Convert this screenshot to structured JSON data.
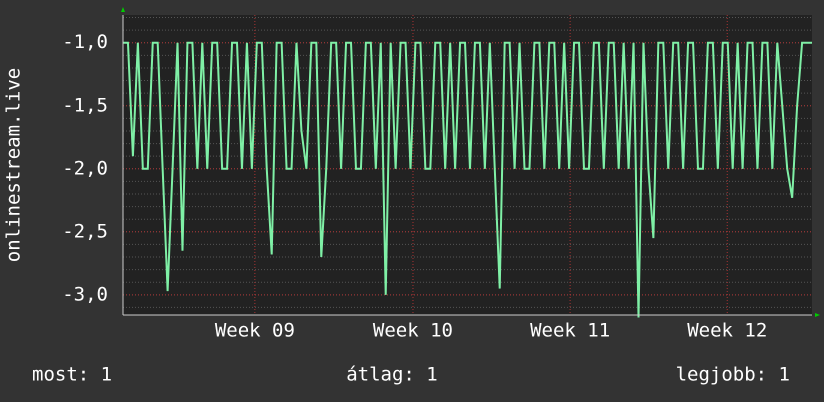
{
  "chart_data": {
    "type": "line",
    "y_label": "onlinestream.live",
    "series": [
      {
        "name": "onlinestream.live",
        "color": "#7ff0a6",
        "values": [
          -1,
          -1,
          -1.9,
          -1,
          -2,
          -2,
          -1,
          -1,
          -2,
          -2.97,
          -2,
          -1,
          -2.65,
          -1,
          -1,
          -2,
          -1,
          -2,
          -1,
          -1,
          -2,
          -2,
          -1,
          -1,
          -2,
          -1,
          -2,
          -1,
          -1,
          -2,
          -2.68,
          -1,
          -1,
          -2,
          -2,
          -1,
          -1.7,
          -2,
          -1,
          -1,
          -2.7,
          -2,
          -1,
          -1,
          -2,
          -1,
          -1,
          -2,
          -2,
          -1,
          -1,
          -2,
          -1,
          -3.0,
          -1,
          -2,
          -1,
          -1,
          -2,
          -1,
          -1,
          -2,
          -2,
          -1,
          -1,
          -2,
          -1,
          -2,
          -1,
          -1,
          -2,
          -1,
          -1,
          -2,
          -1,
          -2,
          -2.95,
          -1,
          -1,
          -2,
          -1,
          -2,
          -2,
          -1,
          -1,
          -2,
          -1,
          -1,
          -2,
          -1,
          -2,
          -1,
          -1,
          -2,
          -2,
          -1,
          -1,
          -2,
          -1,
          -1,
          -2,
          -1,
          -2,
          -1,
          -3.18,
          -1,
          -2,
          -2.55,
          -1,
          -1,
          -2,
          -1,
          -1,
          -2,
          -1,
          -1,
          -2,
          -2,
          -1,
          -1,
          -2,
          -1,
          -1,
          -2,
          -1,
          -2,
          -1,
          -1,
          -2,
          -1,
          -1,
          -2,
          -1,
          -1.5,
          -2,
          -2.23,
          -1.5,
          -1,
          -1,
          -1
        ]
      }
    ],
    "xlim": [
      0,
      139
    ],
    "xticks": [
      {
        "value": 26.6,
        "label": "Week 09"
      },
      {
        "value": 58.5,
        "label": "Week 10"
      },
      {
        "value": 90.2,
        "label": "Week 11"
      },
      {
        "value": 121.9,
        "label": "Week 12"
      }
    ],
    "ylim": [
      -3.16,
      -0.78
    ],
    "yticks": [
      {
        "value": -1,
        "label": "-1,0"
      },
      {
        "value": -1.5,
        "label": "-1,5"
      },
      {
        "value": -2,
        "label": "-2,0"
      },
      {
        "value": -2.5,
        "label": "-2,5"
      },
      {
        "value": -3,
        "label": "-3,0"
      }
    ],
    "grid": true,
    "footer": [
      "most: 1",
      "átlag: 1",
      "legjobb: 1"
    ]
  }
}
